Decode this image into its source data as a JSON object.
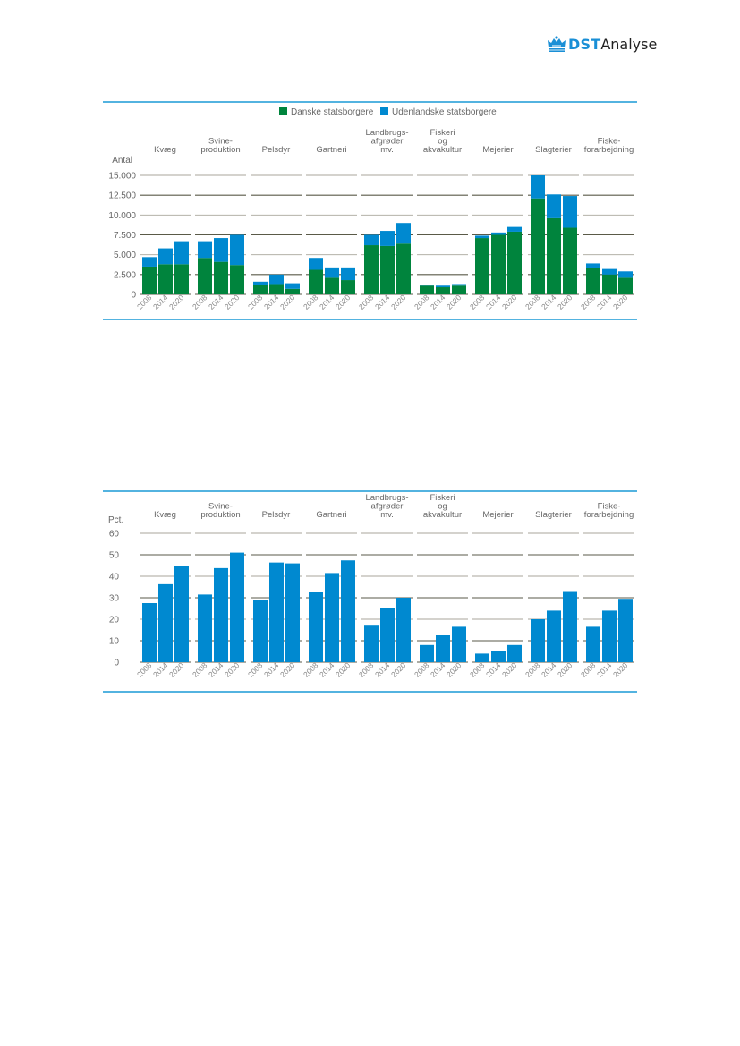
{
  "header": {
    "logo_brand": "DST",
    "logo_suffix": "Analyse",
    "logo_icon": "crown-icon"
  },
  "colors": {
    "danske": "#00843d",
    "udenlandske": "#0089d0",
    "frame": "#1a9ad6",
    "grid_light": "#a8a69b",
    "grid_dark": "#5a5a48",
    "text": "#666666",
    "ticklabel": "#8a8a8a"
  },
  "chart_data": [
    {
      "type": "bar",
      "stacked": true,
      "title": "",
      "ylabel": "Antal",
      "ylim": [
        0,
        15000
      ],
      "yticks": [
        "0",
        "2.500",
        "5.000",
        "7.500",
        "10.000",
        "12.500",
        "15.000"
      ],
      "ytick_values": [
        0,
        2500,
        5000,
        7500,
        10000,
        12500,
        15000
      ],
      "legend_position": "top-center",
      "legend": [
        "Danske statsborgere",
        "Udenlandske statsborgere"
      ],
      "groups": [
        {
          "label": [
            "Kvæg"
          ]
        },
        {
          "label": [
            "Svine-",
            "produktion"
          ]
        },
        {
          "label": [
            "Pelsdyr"
          ]
        },
        {
          "label": [
            "Gartneri"
          ]
        },
        {
          "label": [
            "Landbrugs-",
            "afgrøder",
            "mv."
          ]
        },
        {
          "label": [
            "Fiskeri",
            "og",
            "akvakultur"
          ]
        },
        {
          "label": [
            "Mejerier"
          ]
        },
        {
          "label": [
            "Slagterier"
          ]
        },
        {
          "label": [
            "Fiske-",
            "forarbejdning"
          ]
        }
      ],
      "categories": [
        "2008",
        "2014",
        "2020"
      ],
      "series": [
        {
          "name": "Danske statsborgere",
          "values": [
            [
              3500,
              3800,
              3800
            ],
            [
              4600,
              4100,
              3700
            ],
            [
              1200,
              1300,
              700
            ],
            [
              3100,
              2100,
              1800
            ],
            [
              6200,
              6100,
              6400
            ],
            [
              1100,
              900,
              1100
            ],
            [
              7100,
              7500,
              7900
            ],
            [
              12100,
              9600,
              8400
            ],
            [
              3300,
              2500,
              2100
            ]
          ]
        },
        {
          "name": "Udenlandske statsborgere",
          "values": [
            [
              1200,
              2000,
              2900
            ],
            [
              2100,
              3000,
              3800
            ],
            [
              400,
              1200,
              700
            ],
            [
              1500,
              1300,
              1600
            ],
            [
              1300,
              1900,
              2600
            ],
            [
              100,
              200,
              200
            ],
            [
              300,
              300,
              600
            ],
            [
              2900,
              3000,
              4000
            ],
            [
              600,
              700,
              800
            ]
          ]
        }
      ]
    },
    {
      "type": "bar",
      "stacked": false,
      "title": "",
      "ylabel": "Pct.",
      "ylim": [
        0,
        60
      ],
      "yticks": [
        "0",
        "10",
        "20",
        "30",
        "40",
        "50",
        "60"
      ],
      "ytick_values": [
        0,
        10,
        20,
        30,
        40,
        50,
        60
      ],
      "groups": [
        {
          "label": [
            "Kvæg"
          ]
        },
        {
          "label": [
            "Svine-",
            "produktion"
          ]
        },
        {
          "label": [
            "Pelsdyr"
          ]
        },
        {
          "label": [
            "Gartneri"
          ]
        },
        {
          "label": [
            "Landbrugs-",
            "afgrøder",
            "mv."
          ]
        },
        {
          "label": [
            "Fiskeri",
            "og",
            "akvakultur"
          ]
        },
        {
          "label": [
            "Mejerier"
          ]
        },
        {
          "label": [
            "Slagterier"
          ]
        },
        {
          "label": [
            "Fiske-",
            "forarbejdning"
          ]
        }
      ],
      "categories": [
        "2008",
        "2014",
        "2020"
      ],
      "series": [
        {
          "name": "Udenlandske statsborgere (pct.)",
          "values": [
            [
              27.5,
              36.3,
              44.9
            ],
            [
              31.5,
              43.8,
              51.0
            ],
            [
              29.0,
              46.4,
              46.0
            ],
            [
              32.5,
              41.5,
              47.4
            ],
            [
              17.0,
              25.0,
              30.0
            ],
            [
              8.0,
              12.5,
              16.5
            ],
            [
              4.0,
              5.0,
              8.0
            ],
            [
              20.0,
              24.0,
              32.7
            ],
            [
              16.5,
              24.0,
              29.5
            ]
          ]
        }
      ]
    }
  ]
}
